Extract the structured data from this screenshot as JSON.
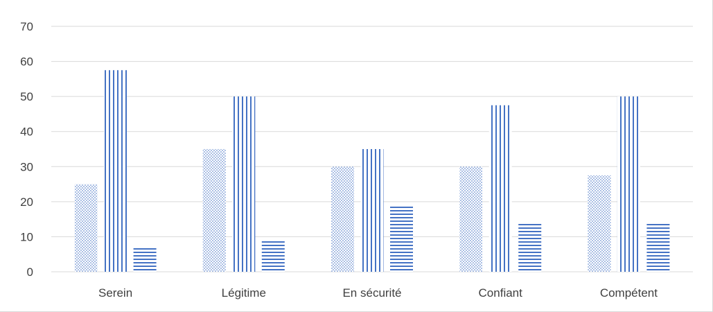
{
  "chart_data": {
    "type": "bar",
    "title": "",
    "xlabel": "",
    "ylabel": "",
    "categories": [
      "Serein",
      "Légitime",
      "En sécurité",
      "Confiant",
      "Compétent"
    ],
    "series": [
      {
        "values": [
          25,
          35,
          30,
          30,
          27.5
        ],
        "pattern": "dotted"
      },
      {
        "values": [
          57.5,
          50,
          35,
          47.5,
          50
        ],
        "pattern": "vertical-lines"
      },
      {
        "values": [
          7,
          9,
          19,
          14,
          14
        ],
        "pattern": "horizontal-lines"
      }
    ],
    "ylim": [
      0,
      70
    ],
    "yticks": [
      0,
      10,
      20,
      30,
      40,
      50,
      60,
      70
    ],
    "grid": true,
    "legend": "none",
    "colors": {
      "bar": "#4472c4",
      "grid": "#d9d9d9",
      "text": "#404040"
    }
  }
}
